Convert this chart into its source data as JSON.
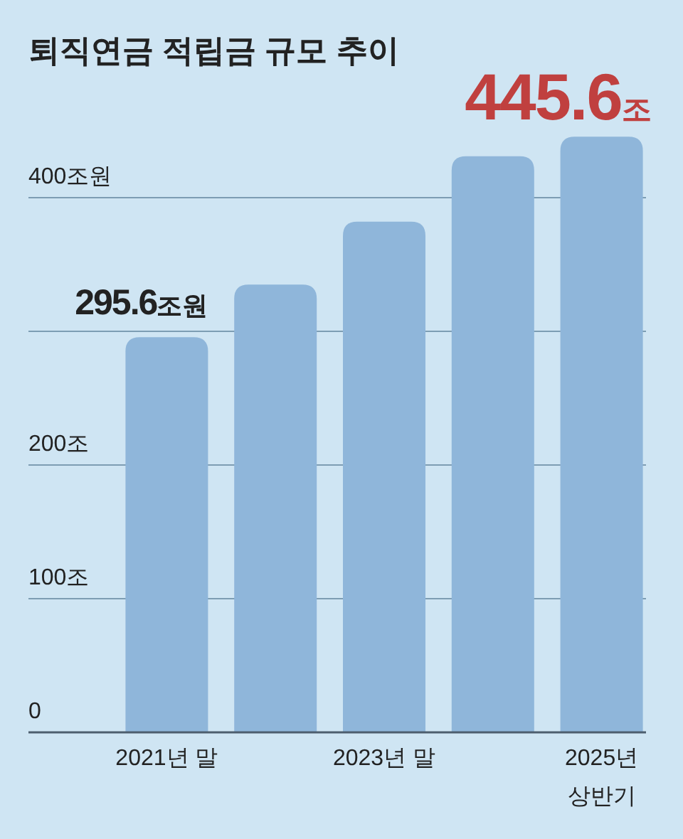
{
  "chart_data": {
    "type": "bar",
    "title": "퇴직연금 적립금 규모 추이",
    "categories": [
      "2021년 말",
      null,
      "2023년 말",
      null,
      "2025년\n상반기"
    ],
    "series": [
      {
        "color": "#8fb6da",
        "values": [
          295.6,
          335,
          382,
          431,
          445.6
        ],
        "value_labels": [
          "295.6조원",
          null,
          null,
          null,
          "445.6조"
        ]
      }
    ],
    "ylim": [
      0,
      445.6
    ],
    "yticks": [
      0,
      {
        "value": 100,
        "label": "100조"
      },
      {
        "value": 200,
        "label": "200조"
      },
      {
        "value": 300,
        "label": null
      },
      {
        "value": 400,
        "label": "400조원"
      }
    ],
    "grid": "y"
  }
}
